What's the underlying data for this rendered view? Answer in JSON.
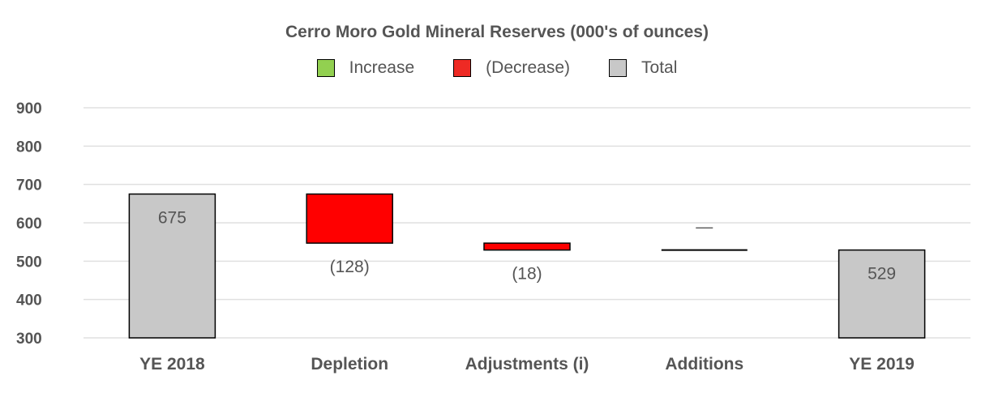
{
  "chart_data": {
    "type": "bar",
    "subtype": "waterfall",
    "title": "Cerro Moro Gold Mineral Reserves (000's of ounces)",
    "legend": [
      {
        "label": "Increase",
        "color": "#92D050"
      },
      {
        "label": "(Decrease)",
        "color": "#EE2A24"
      },
      {
        "label": "Total",
        "color": "#C8C8C8"
      }
    ],
    "legend_position": "top",
    "categories": [
      "YE 2018",
      "Depletion",
      "Adjustments (i)",
      "Additions",
      "YE 2019"
    ],
    "bars": [
      {
        "kind": "total",
        "start": 0,
        "end": 675,
        "label": "675",
        "color": "#C8C8C8"
      },
      {
        "kind": "decrease",
        "start": 675,
        "end": 547,
        "label": "(128)",
        "color": "#FF0000"
      },
      {
        "kind": "decrease",
        "start": 547,
        "end": 529,
        "label": "(18)",
        "color": "#FF0000"
      },
      {
        "kind": "increase",
        "start": 529,
        "end": 529,
        "label": "—",
        "color": "#92D050"
      },
      {
        "kind": "total",
        "start": 0,
        "end": 529,
        "label": "529",
        "color": "#C8C8C8"
      }
    ],
    "y_ticks": [
      "300",
      "400",
      "500",
      "600",
      "700",
      "800",
      "900"
    ],
    "ylim": [
      300,
      900
    ],
    "grid": true
  }
}
